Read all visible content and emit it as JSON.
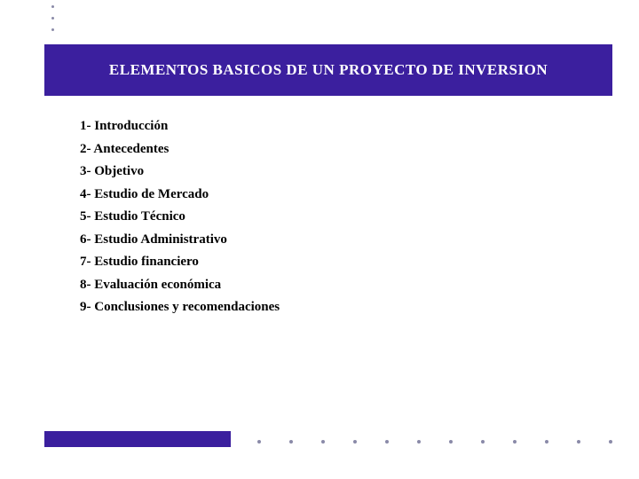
{
  "slide": {
    "title": "ELEMENTOS BASICOS DE UN PROYECTO DE INVERSION",
    "title_bar_color": "#3b1f9e",
    "title_text_color": "#ffffff",
    "title_fontsize": 17,
    "background_color": "#ffffff",
    "items": [
      "1- Introducción",
      "2- Antecedentes",
      "3- Objetivo",
      "4- Estudio de Mercado",
      "5- Estudio Técnico",
      "6- Estudio Administrativo",
      "7- Estudio financiero",
      "8- Evaluación económica",
      "9- Conclusiones y recomendaciones"
    ],
    "item_fontsize": 15,
    "item_color": "#000000",
    "footer_bar_color": "#3b1f9e",
    "decor_dot_color": "#8a8aa8",
    "top_dot_count": 3,
    "bottom_dot_count": 13
  }
}
